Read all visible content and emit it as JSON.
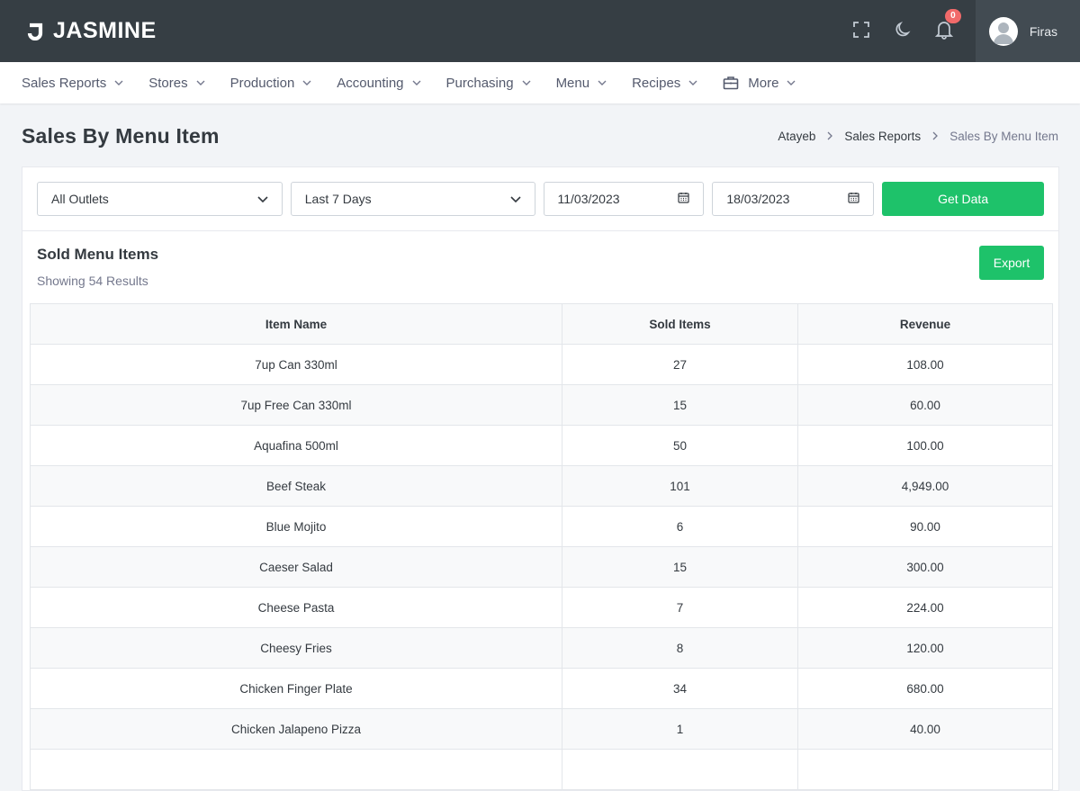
{
  "brand": {
    "name": "JASMINE"
  },
  "header": {
    "notification_count": "0",
    "user_name": "Firas",
    "icons": [
      "fullscreen-icon",
      "moon-icon",
      "bell-icon"
    ]
  },
  "nav": {
    "items": [
      "Sales Reports",
      "Stores",
      "Production",
      "Accounting",
      "Purchasing",
      "Menu",
      "Recipes",
      "More"
    ]
  },
  "page": {
    "title": "Sales By Menu Item",
    "breadcrumb": [
      "Atayeb",
      "Sales Reports",
      "Sales By Menu Item"
    ]
  },
  "filters": {
    "outlet": "All Outlets",
    "range": "Last 7 Days",
    "date_from": "11/03/2023",
    "date_to": "18/03/2023",
    "submit_label": "Get Data"
  },
  "section": {
    "title": "Sold Menu Items",
    "subtitle": "Showing 54 Results",
    "export_label": "Export"
  },
  "table": {
    "columns": [
      "Item Name",
      "Sold Items",
      "Revenue"
    ],
    "rows": [
      [
        "7up Can 330ml",
        "27",
        "108.00"
      ],
      [
        "7up Free Can 330ml",
        "15",
        "60.00"
      ],
      [
        "Aquafina 500ml",
        "50",
        "100.00"
      ],
      [
        "Beef Steak",
        "101",
        "4,949.00"
      ],
      [
        "Blue Mojito",
        "6",
        "90.00"
      ],
      [
        "Caeser Salad",
        "15",
        "300.00"
      ],
      [
        "Cheese Pasta",
        "7",
        "224.00"
      ],
      [
        "Cheesy Fries",
        "8",
        "120.00"
      ],
      [
        "Chicken Finger Plate",
        "34",
        "680.00"
      ],
      [
        "Chicken Jalapeno Pizza",
        "1",
        "40.00"
      ],
      [
        "",
        "",
        ""
      ]
    ]
  },
  "colors": {
    "topbar": "#363e44",
    "accent_green": "#1ec26a",
    "badge_red": "#f16a6a"
  }
}
